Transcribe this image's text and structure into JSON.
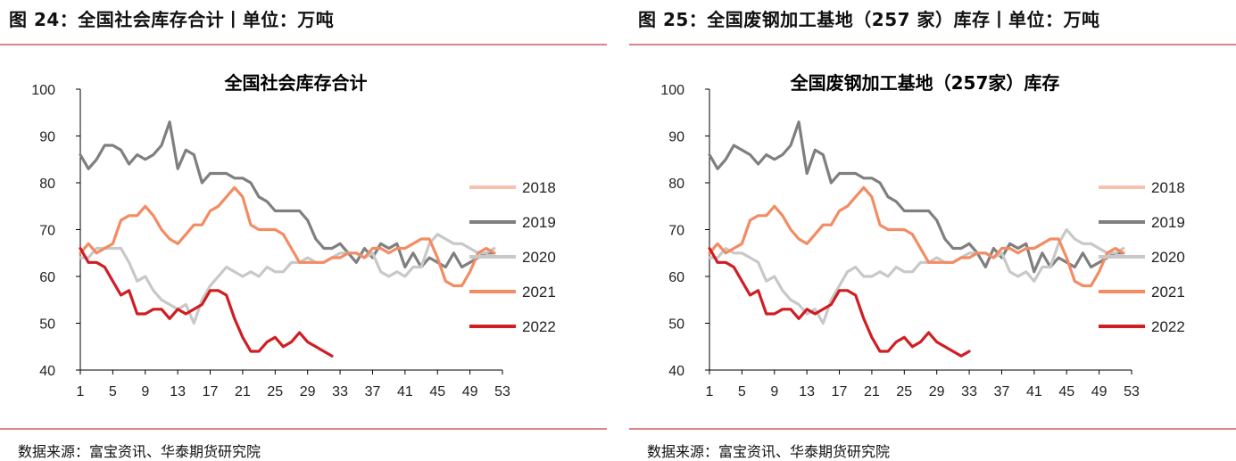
{
  "left": {
    "figure_title": "图 24：全国社会库存合计丨单位：万吨",
    "source": "数据来源：富宝资讯、华泰期货研究院"
  },
  "right": {
    "figure_title": "图 25：全国废钢加工基地（257 家）库存丨单位：万吨",
    "source": "数据来源：富宝资讯、华泰期货研究院"
  },
  "colors": {
    "2018": "#f6c2b0",
    "2019": "#7f7f7f",
    "2020": "#c8c8c8",
    "2021": "#f38b63",
    "2022": "#d01d22",
    "rule": "#d8868a"
  },
  "chart_data": [
    {
      "type": "line",
      "title": "全国社会库存合计",
      "xlabel": "",
      "ylabel": "",
      "ylim": [
        40,
        100
      ],
      "yticks": [
        40,
        50,
        60,
        70,
        80,
        90,
        100
      ],
      "xlim": [
        1,
        53
      ],
      "xticks": [
        1,
        5,
        9,
        13,
        17,
        21,
        25,
        29,
        33,
        37,
        41,
        45,
        49,
        53
      ],
      "legend_position": "right",
      "grid": false,
      "series": [
        {
          "name": "2018",
          "x": [],
          "values": []
        },
        {
          "name": "2019",
          "x": [
            1,
            2,
            3,
            4,
            5,
            6,
            7,
            8,
            9,
            10,
            11,
            12,
            13,
            14,
            15,
            16,
            17,
            18,
            19,
            20,
            21,
            22,
            23,
            24,
            25,
            26,
            27,
            28,
            29,
            30,
            31,
            32,
            33,
            34,
            35,
            36,
            37,
            38,
            39,
            40,
            41,
            42,
            43,
            44,
            45,
            46,
            47,
            48,
            49,
            50,
            51,
            52
          ],
          "values": [
            86,
            83,
            85,
            88,
            88,
            87,
            84,
            86,
            85,
            86,
            88,
            93,
            83,
            87,
            86,
            80,
            82,
            82,
            82,
            81,
            81,
            80,
            77,
            76,
            74,
            74,
            74,
            74,
            72,
            68,
            66,
            66,
            67,
            65,
            63,
            66,
            64,
            67,
            66,
            67,
            62,
            65,
            62,
            64,
            63,
            62,
            65,
            62,
            63,
            64,
            65,
            65
          ]
        },
        {
          "name": "2020",
          "x": [
            1,
            2,
            3,
            4,
            5,
            6,
            7,
            8,
            9,
            10,
            11,
            12,
            13,
            14,
            15,
            16,
            17,
            18,
            19,
            20,
            21,
            22,
            23,
            24,
            25,
            26,
            27,
            28,
            29,
            30,
            31,
            32,
            33,
            34,
            35,
            36,
            37,
            38,
            39,
            40,
            41,
            42,
            43,
            44,
            45,
            46,
            47,
            48,
            49,
            50,
            51,
            52
          ],
          "values": [
            64,
            64,
            66,
            66,
            66,
            66,
            63,
            59,
            60,
            57,
            55,
            54,
            53,
            54,
            50,
            55,
            58,
            60,
            62,
            61,
            60,
            61,
            60,
            62,
            61,
            61,
            63,
            63,
            64,
            63,
            63,
            64,
            65,
            65,
            65,
            64,
            65,
            61,
            60,
            61,
            60,
            62,
            62,
            67,
            69,
            68,
            67,
            67,
            66,
            65,
            65,
            66
          ]
        },
        {
          "name": "2021",
          "x": [
            1,
            2,
            3,
            4,
            5,
            6,
            7,
            8,
            9,
            10,
            11,
            12,
            13,
            14,
            15,
            16,
            17,
            18,
            19,
            20,
            21,
            22,
            23,
            24,
            25,
            26,
            27,
            28,
            29,
            30,
            31,
            32,
            33,
            34,
            35,
            36,
            37,
            38,
            39,
            40,
            41,
            42,
            43,
            44,
            45,
            46,
            47,
            48,
            49,
            50,
            51,
            52
          ],
          "values": [
            65,
            67,
            65,
            66,
            67,
            72,
            73,
            73,
            75,
            73,
            70,
            68,
            67,
            69,
            71,
            71,
            74,
            75,
            77,
            79,
            77,
            71,
            70,
            70,
            70,
            69,
            66,
            63,
            63,
            63,
            63,
            64,
            64,
            65,
            65,
            64,
            66,
            66,
            65,
            66,
            66,
            67,
            68,
            68,
            64,
            59,
            58,
            58,
            61,
            65,
            66,
            65
          ]
        },
        {
          "name": "2022",
          "x": [
            1,
            2,
            3,
            4,
            5,
            6,
            7,
            8,
            9,
            10,
            11,
            12,
            13,
            14,
            15,
            16,
            17,
            18,
            19,
            20,
            21,
            22,
            23,
            24,
            25,
            26,
            27,
            28,
            29,
            30,
            31,
            32
          ],
          "values": [
            66,
            63,
            63,
            62,
            59,
            56,
            57,
            52,
            52,
            53,
            53,
            51,
            53,
            52,
            53,
            54,
            57,
            57,
            56,
            51,
            47,
            44,
            44,
            46,
            47,
            45,
            46,
            48,
            46,
            45,
            44,
            43
          ]
        }
      ]
    },
    {
      "type": "line",
      "title": "全国废钢加工基地（257家）库存",
      "xlabel": "",
      "ylabel": "",
      "ylim": [
        40,
        100
      ],
      "yticks": [
        40,
        50,
        60,
        70,
        80,
        90,
        100
      ],
      "xlim": [
        1,
        53
      ],
      "xticks": [
        1,
        5,
        9,
        13,
        17,
        21,
        25,
        29,
        33,
        37,
        41,
        45,
        49,
        53
      ],
      "legend_position": "right",
      "grid": false,
      "series": [
        {
          "name": "2018",
          "x": [],
          "values": []
        },
        {
          "name": "2019",
          "x": [
            1,
            2,
            3,
            4,
            5,
            6,
            7,
            8,
            9,
            10,
            11,
            12,
            13,
            14,
            15,
            16,
            17,
            18,
            19,
            20,
            21,
            22,
            23,
            24,
            25,
            26,
            27,
            28,
            29,
            30,
            31,
            32,
            33,
            34,
            35,
            36,
            37,
            38,
            39,
            40,
            41,
            42,
            43,
            44,
            45,
            46,
            47,
            48,
            49,
            50,
            51,
            52
          ],
          "values": [
            86,
            83,
            85,
            88,
            87,
            86,
            84,
            86,
            85,
            86,
            88,
            93,
            82,
            87,
            86,
            80,
            82,
            82,
            82,
            81,
            81,
            80,
            77,
            76,
            74,
            74,
            74,
            74,
            72,
            68,
            66,
            66,
            67,
            65,
            62,
            66,
            64,
            67,
            66,
            67,
            61,
            65,
            62,
            64,
            63,
            62,
            65,
            62,
            63,
            64,
            65,
            65
          ]
        },
        {
          "name": "2020",
          "x": [
            1,
            2,
            3,
            4,
            5,
            6,
            7,
            8,
            9,
            10,
            11,
            12,
            13,
            14,
            15,
            16,
            17,
            18,
            19,
            20,
            21,
            22,
            23,
            24,
            25,
            26,
            27,
            28,
            29,
            30,
            31,
            32,
            33,
            34,
            35,
            36,
            37,
            38,
            39,
            40,
            41,
            42,
            43,
            44,
            45,
            46,
            47,
            48,
            49,
            50,
            51,
            52
          ],
          "values": [
            64,
            64,
            66,
            65,
            65,
            64,
            63,
            59,
            60,
            57,
            55,
            54,
            52,
            53,
            50,
            55,
            58,
            61,
            62,
            60,
            60,
            61,
            60,
            62,
            61,
            61,
            63,
            63,
            64,
            63,
            63,
            64,
            65,
            65,
            65,
            64,
            65,
            61,
            60,
            61,
            59,
            62,
            62,
            67,
            70,
            68,
            67,
            67,
            66,
            65,
            65,
            66
          ]
        },
        {
          "name": "2021",
          "x": [
            1,
            2,
            3,
            4,
            5,
            6,
            7,
            8,
            9,
            10,
            11,
            12,
            13,
            14,
            15,
            16,
            17,
            18,
            19,
            20,
            21,
            22,
            23,
            24,
            25,
            26,
            27,
            28,
            29,
            30,
            31,
            32,
            33,
            34,
            35,
            36,
            37,
            38,
            39,
            40,
            41,
            42,
            43,
            44,
            45,
            46,
            47,
            48,
            49,
            50,
            51,
            52
          ],
          "values": [
            65,
            67,
            65,
            66,
            67,
            72,
            73,
            73,
            75,
            73,
            70,
            68,
            67,
            69,
            71,
            71,
            74,
            75,
            77,
            79,
            77,
            71,
            70,
            70,
            70,
            69,
            66,
            63,
            63,
            63,
            63,
            64,
            64,
            65,
            65,
            64,
            66,
            66,
            65,
            66,
            66,
            67,
            68,
            68,
            64,
            59,
            58,
            58,
            61,
            65,
            66,
            65
          ]
        },
        {
          "name": "2022",
          "x": [
            1,
            2,
            3,
            4,
            5,
            6,
            7,
            8,
            9,
            10,
            11,
            12,
            13,
            14,
            15,
            16,
            17,
            18,
            19,
            20,
            21,
            22,
            23,
            24,
            25,
            26,
            27,
            28,
            29,
            30,
            31,
            32,
            33
          ],
          "values": [
            66,
            63,
            63,
            62,
            59,
            56,
            57,
            52,
            52,
            53,
            53,
            51,
            53,
            52,
            53,
            54,
            57,
            57,
            56,
            51,
            47,
            44,
            44,
            46,
            47,
            45,
            46,
            48,
            46,
            45,
            44,
            43,
            44
          ]
        }
      ]
    }
  ]
}
